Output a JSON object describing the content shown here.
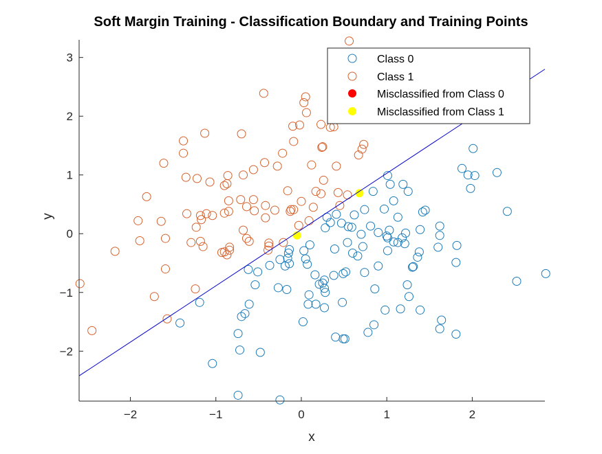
{
  "chart_data": {
    "type": "scatter",
    "title": "Soft Margin Training - Classification Boundary and Training Points",
    "xlabel": "x",
    "ylabel": "y",
    "xlim": [
      -2.6,
      2.85
    ],
    "ylim": [
      -2.85,
      3.3
    ],
    "xticks": [
      -2,
      -1,
      0,
      1,
      2
    ],
    "yticks": [
      -2,
      -1,
      0,
      1,
      2,
      3
    ],
    "grid": false,
    "legend_position": "top-right",
    "colors": {
      "class0": "#1a7ab8",
      "class1": "#d5612b",
      "mis0": "#ff0000",
      "mis1": "#ffff00",
      "boundary": "#0000cc"
    },
    "boundary_line": {
      "x": [
        -2.6,
        2.85
      ],
      "y": [
        -2.42,
        2.8
      ]
    },
    "legend": [
      "Class 0",
      "Class 1",
      "Misclassified from Class 0",
      "Misclassified from Class 1"
    ],
    "series": [
      {
        "name": "Class 0",
        "points": [
          [
            1.01,
            0.99
          ],
          [
            1.19,
            0.84
          ],
          [
            1.25,
            0.72
          ],
          [
            1.04,
            0.84
          ],
          [
            0.84,
            0.72
          ],
          [
            1.08,
            0.56
          ],
          [
            0.97,
            0.42
          ],
          [
            1.42,
            0.37
          ],
          [
            1.45,
            0.4
          ],
          [
            1.13,
            0.28
          ],
          [
            1.22,
            0.01
          ],
          [
            1.39,
            0.07
          ],
          [
            1.03,
            0.06
          ],
          [
            1.0,
            -0.04
          ],
          [
            1.08,
            -0.14
          ],
          [
            1.13,
            -0.15
          ],
          [
            1.18,
            -0.07
          ],
          [
            1.38,
            -0.31
          ],
          [
            1.36,
            -0.4
          ],
          [
            1.3,
            -0.57
          ],
          [
            1.31,
            -0.56
          ],
          [
            1.24,
            -0.87
          ],
          [
            1.26,
            -1.07
          ],
          [
            1.16,
            -1.28
          ],
          [
            1.01,
            -0.29
          ],
          [
            0.81,
            0.13
          ],
          [
            0.9,
            0.02
          ],
          [
            0.74,
            0.41
          ],
          [
            0.62,
            0.32
          ],
          [
            0.55,
            0.12
          ],
          [
            0.59,
            0.11
          ],
          [
            0.41,
            0.33
          ],
          [
            0.3,
            0.28
          ],
          [
            0.34,
            0.19
          ],
          [
            0.47,
            0.18
          ],
          [
            0.28,
            0.1
          ],
          [
            0.54,
            -0.15
          ],
          [
            0.72,
            -0.22
          ],
          [
            0.7,
            -0.01
          ],
          [
            0.6,
            -0.33
          ],
          [
            0.66,
            -0.38
          ],
          [
            0.39,
            -0.26
          ],
          [
            0.38,
            -0.71
          ],
          [
            0.49,
            -0.68
          ],
          [
            0.52,
            -0.65
          ],
          [
            0.74,
            -0.66
          ],
          [
            0.9,
            -0.55
          ],
          [
            0.86,
            -0.94
          ],
          [
            0.98,
            -1.3
          ],
          [
            0.85,
            -1.55
          ],
          [
            0.78,
            -1.68
          ],
          [
            0.51,
            -1.79
          ],
          [
            0.49,
            -1.79
          ],
          [
            0.4,
            -1.76
          ],
          [
            0.48,
            -1.17
          ],
          [
            0.17,
            -1.2
          ],
          [
            0.27,
            -1.26
          ],
          [
            0.09,
            -1.04
          ],
          [
            0.08,
            -1.2
          ],
          [
            0.25,
            -0.84
          ],
          [
            0.27,
            -0.79
          ],
          [
            0.21,
            -0.86
          ],
          [
            0.16,
            -0.7
          ],
          [
            0.03,
            -0.29
          ],
          [
            0.05,
            -0.43
          ],
          [
            0.07,
            -0.52
          ],
          [
            0.1,
            -0.19
          ],
          [
            0.27,
            -0.93
          ],
          [
            0.28,
            -1.0
          ],
          [
            -0.14,
            -0.27
          ],
          [
            -0.15,
            -0.33
          ],
          [
            -0.16,
            -0.42
          ],
          [
            -0.14,
            -0.51
          ],
          [
            -0.19,
            -0.55
          ],
          [
            -0.25,
            -0.44
          ],
          [
            -0.27,
            -0.92
          ],
          [
            -0.17,
            -0.95
          ],
          [
            -0.37,
            -0.54
          ],
          [
            -0.51,
            -0.65
          ],
          [
            -0.54,
            -0.87
          ],
          [
            -0.48,
            -2.02
          ],
          [
            -0.62,
            -0.61
          ],
          [
            -0.61,
            -1.2
          ],
          [
            -0.66,
            -1.36
          ],
          [
            -0.7,
            -1.41
          ],
          [
            -0.74,
            -1.7
          ],
          [
            -0.72,
            -1.98
          ],
          [
            -0.74,
            -2.75
          ],
          [
            -0.25,
            -2.83
          ],
          [
            -1.04,
            -2.21
          ],
          [
            -1.19,
            -1.17
          ],
          [
            -1.42,
            -1.52
          ],
          [
            0.02,
            -1.5
          ],
          [
            1.01,
            -0.07
          ],
          [
            1.21,
            -0.17
          ],
          [
            1.6,
            -0.23
          ],
          [
            1.62,
            -0.03
          ],
          [
            1.62,
            0.13
          ],
          [
            1.81,
            -0.49
          ],
          [
            1.82,
            -0.2
          ],
          [
            1.62,
            -1.62
          ],
          [
            1.64,
            -1.47
          ],
          [
            1.81,
            -1.71
          ],
          [
            1.39,
            -1.3
          ],
          [
            1.88,
            1.11
          ],
          [
            1.95,
            1.0
          ],
          [
            2.03,
            0.99
          ],
          [
            1.98,
            0.77
          ],
          [
            2.01,
            1.45
          ],
          [
            2.29,
            1.04
          ],
          [
            2.41,
            0.38
          ],
          [
            2.52,
            -0.81
          ],
          [
            2.86,
            -0.68
          ]
        ]
      },
      {
        "name": "Class 1",
        "points": [
          [
            0.56,
            3.28
          ],
          [
            -0.44,
            2.39
          ],
          [
            0.05,
            2.33
          ],
          [
            0.03,
            2.23
          ],
          [
            0.06,
            2.06
          ],
          [
            0.23,
            1.86
          ],
          [
            0.34,
            1.81
          ],
          [
            0.38,
            1.82
          ],
          [
            -0.02,
            1.85
          ],
          [
            -0.1,
            1.83
          ],
          [
            -0.7,
            1.7
          ],
          [
            -1.13,
            1.71
          ],
          [
            -1.38,
            1.58
          ],
          [
            -1.38,
            1.37
          ],
          [
            -1.61,
            1.2
          ],
          [
            -0.09,
            1.57
          ],
          [
            -0.22,
            1.37
          ],
          [
            0.12,
            1.17
          ],
          [
            0.24,
            1.47
          ],
          [
            0.25,
            1.48
          ],
          [
            0.41,
            1.15
          ],
          [
            0.67,
            1.34
          ],
          [
            0.73,
            1.52
          ],
          [
            0.71,
            1.44
          ],
          [
            -0.43,
            1.21
          ],
          [
            -0.28,
            1.15
          ],
          [
            -0.56,
            1.09
          ],
          [
            -0.68,
            1.0
          ],
          [
            -0.86,
            0.99
          ],
          [
            -0.87,
            0.85
          ],
          [
            -1.07,
            0.88
          ],
          [
            -1.22,
            0.94
          ],
          [
            -1.35,
            0.96
          ],
          [
            -0.9,
            0.82
          ],
          [
            0.26,
            0.91
          ],
          [
            0.17,
            0.72
          ],
          [
            0.23,
            0.68
          ],
          [
            0.43,
            0.7
          ],
          [
            -0.16,
            0.73
          ],
          [
            -0.56,
            0.58
          ],
          [
            -0.71,
            0.58
          ],
          [
            -0.85,
            0.56
          ],
          [
            -1.04,
            0.31
          ],
          [
            -1.11,
            0.34
          ],
          [
            -1.18,
            0.31
          ],
          [
            -1.17,
            0.24
          ],
          [
            -1.23,
            0.11
          ],
          [
            -1.34,
            0.34
          ],
          [
            -1.64,
            0.21
          ],
          [
            -1.91,
            0.22
          ],
          [
            -1.81,
            0.63
          ],
          [
            -0.42,
            0.48
          ],
          [
            -0.31,
            0.4
          ],
          [
            -0.42,
            0.27
          ],
          [
            -0.55,
            0.39
          ],
          [
            -0.64,
            0.46
          ],
          [
            -0.85,
            0.38
          ],
          [
            -0.9,
            0.35
          ],
          [
            -0.68,
            0.06
          ],
          [
            -0.64,
            -0.08
          ],
          [
            -0.61,
            -0.13
          ],
          [
            -0.38,
            -0.16
          ],
          [
            -0.38,
            -0.21
          ],
          [
            -0.39,
            -0.28
          ],
          [
            -0.12,
            0.41
          ],
          [
            -0.13,
            0.38
          ],
          [
            -0.09,
            0.41
          ],
          [
            0.0,
            0.55
          ],
          [
            0.14,
            0.45
          ],
          [
            0.09,
            0.22
          ],
          [
            -0.03,
            0.14
          ],
          [
            -0.21,
            -0.15
          ],
          [
            -0.84,
            -0.28
          ],
          [
            -0.87,
            -0.36
          ],
          [
            -0.9,
            -0.31
          ],
          [
            -0.93,
            -0.32
          ],
          [
            -0.84,
            -0.23
          ],
          [
            -1.15,
            -0.22
          ],
          [
            -1.18,
            -0.13
          ],
          [
            -1.29,
            -0.15
          ],
          [
            -1.59,
            -0.08
          ],
          [
            -1.89,
            -0.12
          ],
          [
            -2.18,
            -0.3
          ],
          [
            -1.59,
            -0.6
          ],
          [
            -1.72,
            -1.07
          ],
          [
            -1.57,
            -1.45
          ],
          [
            -1.24,
            -0.94
          ],
          [
            -2.45,
            -1.65
          ],
          [
            -2.59,
            -0.85
          ],
          [
            0.45,
            0.48
          ],
          [
            0.54,
            0.66
          ]
        ]
      },
      {
        "name": "Misclassified from Class 0",
        "points": []
      },
      {
        "name": "Misclassified from Class 1",
        "points": [
          [
            -0.05,
            -0.03
          ],
          [
            0.68,
            0.69
          ]
        ]
      }
    ]
  }
}
